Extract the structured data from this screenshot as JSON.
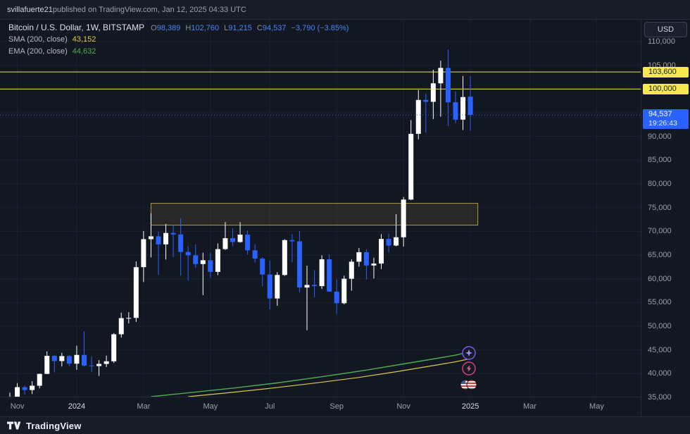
{
  "header": {
    "username": "svillafuerte21",
    "suffix": " published on TradingView.com, Jan 12, 2025 04:33 UTC"
  },
  "legend": {
    "title": "Bitcoin / U.S. Dollar, 1W, BITSTAMP",
    "ohlc": [
      {
        "label": "O",
        "value": "98,389"
      },
      {
        "label": "H",
        "value": "102,760"
      },
      {
        "label": "L",
        "value": "91,215"
      },
      {
        "label": "C",
        "value": "94,537"
      }
    ],
    "change": "−3,790 (−3.85%)",
    "sma": {
      "label": "SMA (200, close)",
      "value": "43,152"
    },
    "ema": {
      "label": "EMA (200, close)",
      "value": "44,632"
    }
  },
  "axis_right": {
    "currency_button": "USD",
    "labels": [
      {
        "text": "110,000",
        "price": 110000
      },
      {
        "text": "105,000",
        "price": 105000
      },
      {
        "text": "90,000",
        "price": 90000
      },
      {
        "text": "85,000",
        "price": 85000
      },
      {
        "text": "80,000",
        "price": 80000
      },
      {
        "text": "75,000",
        "price": 75000
      },
      {
        "text": "70,000",
        "price": 70000
      },
      {
        "text": "65,000",
        "price": 65000
      },
      {
        "text": "60,000",
        "price": 60000
      },
      {
        "text": "55,000",
        "price": 55000
      },
      {
        "text": "50,000",
        "price": 50000
      },
      {
        "text": "45,000",
        "price": 45000
      },
      {
        "text": "40,000",
        "price": 40000
      },
      {
        "text": "35,000",
        "price": 35000
      }
    ],
    "level_labels": [
      {
        "text": "103,600",
        "price": 103600
      },
      {
        "text": "100,000",
        "price": 100000
      }
    ],
    "price_label": {
      "text": "94,537",
      "countdown": "19:26:43",
      "price": 94537
    }
  },
  "axis_time": {
    "labels": [
      {
        "text": "Nov",
        "i": 1,
        "year": false
      },
      {
        "text": "2024",
        "i": 9,
        "year": true
      },
      {
        "text": "Mar",
        "i": 18,
        "year": false
      },
      {
        "text": "May",
        "i": 27,
        "year": false
      },
      {
        "text": "Jul",
        "i": 35,
        "year": false
      },
      {
        "text": "Sep",
        "i": 44,
        "year": false
      },
      {
        "text": "Nov",
        "i": 53,
        "year": false
      },
      {
        "text": "2025",
        "i": 62,
        "year": true
      },
      {
        "text": "Mar",
        "i": 70,
        "year": false
      },
      {
        "text": "May",
        "i": 79,
        "year": false
      }
    ]
  },
  "footer": {
    "brand": "TradingView"
  },
  "chart_data": {
    "type": "candlestick",
    "symbol": "Bitcoin / U.S. Dollar",
    "interval": "1W",
    "exchange": "BITSTAMP",
    "ylim": [
      35000,
      110000
    ],
    "grid": true,
    "ohlc_current": {
      "open": 98389,
      "high": 102760,
      "low": 91215,
      "close": 94537,
      "change": -3790,
      "change_pct": -3.85
    },
    "indicators": [
      {
        "name": "SMA (200, close)",
        "value": 43152
      },
      {
        "name": "EMA (200, close)",
        "value": 44632
      }
    ],
    "levels": [
      {
        "price": 103600
      },
      {
        "price": 100000
      }
    ],
    "current_price": 94537,
    "countdown": "19:26:43",
    "zone": {
      "i1": 19,
      "i2": 63,
      "top": 75900,
      "bottom": 71300
    },
    "candles": [
      [
        34550,
        36000,
        34050,
        35000
      ],
      [
        35000,
        38000,
        34500,
        37150
      ],
      [
        37150,
        37500,
        35600,
        36550
      ],
      [
        36550,
        38400,
        35700,
        37450
      ],
      [
        37450,
        40000,
        36900,
        39950
      ],
      [
        39950,
        44700,
        39900,
        43750
      ],
      [
        43750,
        43900,
        40250,
        42650
      ],
      [
        42650,
        44400,
        41500,
        43700
      ],
      [
        43700,
        43950,
        41600,
        42100
      ],
      [
        42100,
        45900,
        40800,
        43950
      ],
      [
        43950,
        48950,
        41500,
        41700
      ],
      [
        41700,
        43600,
        40300,
        41600
      ],
      [
        41600,
        42850,
        39500,
        42050
      ],
      [
        42050,
        43800,
        41400,
        42600
      ],
      [
        42600,
        48550,
        42250,
        48300
      ],
      [
        48300,
        52850,
        47600,
        51700
      ],
      [
        51700,
        52950,
        50600,
        51750
      ],
      [
        51750,
        63650,
        50900,
        62450
      ],
      [
        62450,
        70050,
        59300,
        68350
      ],
      [
        68350,
        73800,
        64500,
        68950
      ],
      [
        68950,
        69950,
        60800,
        67250
      ],
      [
        67250,
        71550,
        64050,
        69650
      ],
      [
        69650,
        71350,
        64550,
        69350
      ],
      [
        69350,
        72750,
        60650,
        65650
      ],
      [
        65650,
        66850,
        59650,
        64950
      ],
      [
        64950,
        67250,
        62300,
        63100
      ],
      [
        63100,
        65500,
        56550,
        63900
      ],
      [
        63900,
        65500,
        60200,
        61450
      ],
      [
        61450,
        67450,
        60750,
        66250
      ],
      [
        66250,
        71950,
        66100,
        68550
      ],
      [
        68550,
        70650,
        66900,
        67750
      ],
      [
        67750,
        71950,
        67600,
        69300
      ],
      [
        69300,
        70200,
        65100,
        66000
      ],
      [
        66000,
        67300,
        63400,
        64250
      ],
      [
        64250,
        64550,
        58450,
        60900
      ],
      [
        60900,
        63850,
        53550,
        55850
      ],
      [
        55850,
        61400,
        54300,
        60800
      ],
      [
        60800,
        68350,
        60600,
        68150
      ],
      [
        68150,
        69400,
        63450,
        67900
      ],
      [
        67900,
        70050,
        57150,
        58150
      ],
      [
        58150,
        62750,
        49150,
        58700
      ],
      [
        58700,
        61850,
        56100,
        58450
      ],
      [
        58450,
        64950,
        57850,
        64100
      ],
      [
        64100,
        65150,
        57250,
        57300
      ],
      [
        57300,
        59850,
        52550,
        54850
      ],
      [
        54850,
        60650,
        54600,
        60000
      ],
      [
        60000,
        64100,
        57500,
        63600
      ],
      [
        63600,
        66500,
        62550,
        65600
      ],
      [
        65600,
        66250,
        59850,
        62800
      ],
      [
        62800,
        64450,
        60050,
        63200
      ],
      [
        63200,
        69400,
        62050,
        68400
      ],
      [
        68400,
        69500,
        65550,
        67000
      ],
      [
        67000,
        73600,
        66850,
        68750
      ],
      [
        68750,
        77250,
        66800,
        76700
      ],
      [
        76700,
        93450,
        76550,
        90550
      ],
      [
        90550,
        99800,
        89400,
        97700
      ],
      [
        97700,
        98950,
        90800,
        97300
      ],
      [
        97300,
        104050,
        93650,
        101200
      ],
      [
        101200,
        106000,
        94150,
        104450
      ],
      [
        104450,
        108350,
        92200,
        97200
      ],
      [
        97200,
        99500,
        92750,
        93550
      ],
      [
        93550,
        102750,
        91350,
        98300
      ],
      [
        98389,
        102760,
        91215,
        94537
      ]
    ],
    "sma_line": [
      [
        24,
        35150
      ],
      [
        29,
        35900
      ],
      [
        35,
        36900
      ],
      [
        41,
        38000
      ],
      [
        47,
        39200
      ],
      [
        52,
        40400
      ],
      [
        57,
        41700
      ],
      [
        60,
        42500
      ],
      [
        62,
        43152
      ]
    ],
    "ema_line": [
      [
        19,
        35150
      ],
      [
        24,
        35950
      ],
      [
        30,
        36950
      ],
      [
        36,
        38050
      ],
      [
        42,
        39350
      ],
      [
        48,
        40750
      ],
      [
        53,
        42050
      ],
      [
        57,
        43100
      ],
      [
        60,
        43900
      ],
      [
        62,
        44632
      ]
    ],
    "markers": [
      {
        "type": "sparkle",
        "x": 666,
        "y": 501
      },
      {
        "type": "lightning",
        "x": 666,
        "y": 523
      },
      {
        "type": "flags",
        "x": 665,
        "y": 546
      }
    ],
    "scale": {
      "p1": 110000,
      "y1": 59,
      "p2": 35000,
      "y2": 564,
      "x0": 14,
      "dx": 10.55
    },
    "colors": {
      "background": "#131722",
      "up": "#ffffff",
      "down": "#2962ff",
      "sma": "#d9c94a",
      "ema": "#4caf50",
      "level": "#f0e14a",
      "price_line": "#2962ff",
      "grid": "#1b2030",
      "zone_fill": "rgba(212,199,92,0.10)",
      "zone_stroke": "#a89b4a"
    }
  }
}
